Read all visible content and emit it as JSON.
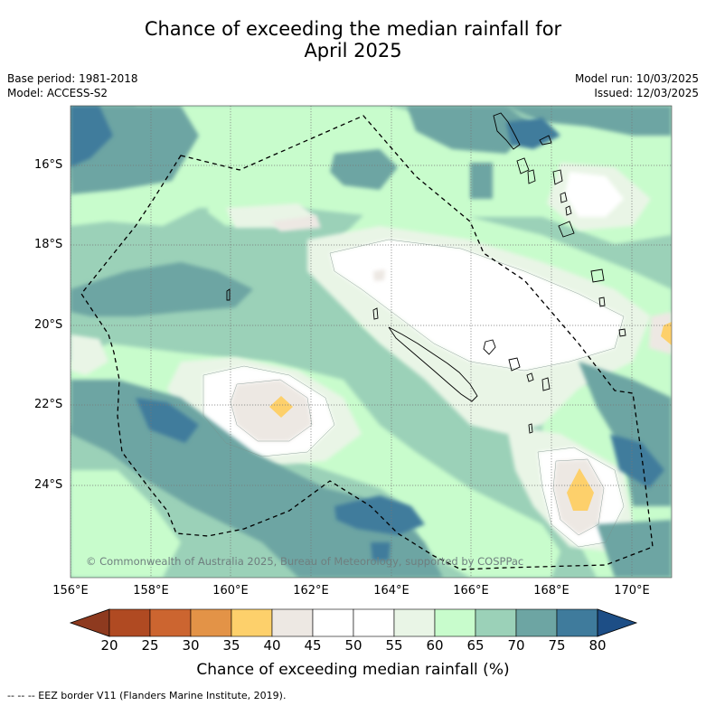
{
  "title_line1": "Chance of exceeding the median rainfall for",
  "title_line2": "April 2025",
  "meta": {
    "base_period": "Base period: 1981-2018",
    "model": "Model: ACCESS-S2",
    "model_run": "Model run: 10/03/2025",
    "issued": "Issued: 12/03/2025"
  },
  "latitude_labels": [
    "16°S",
    "18°S",
    "20°S",
    "22°S",
    "24°S"
  ],
  "longitude_labels": [
    "156°E",
    "158°E",
    "160°E",
    "162°E",
    "164°E",
    "166°E",
    "168°E",
    "170°E"
  ],
  "credit": "© Commonwealth of Australia 2025, Bureau of Meteorology, supported by COSPPac",
  "colorbar": {
    "ticks": [
      "20",
      "25",
      "30",
      "35",
      "40",
      "45",
      "50",
      "55",
      "60",
      "65",
      "70",
      "75",
      "80"
    ],
    "colors": [
      "#8e3a1f",
      "#b04a22",
      "#cc6530",
      "#e39347",
      "#fdd06b",
      "#ede8e3",
      "#ffffff",
      "#ffffff",
      "#e9f5e6",
      "#c8fccc",
      "#9bd1b8",
      "#6da5a3",
      "#3f7b9c",
      "#1d4e86"
    ],
    "label": "Chance of exceeding median rainfall (%)"
  },
  "footnote": "--  --  -- EEZ border V11 (Flanders Marine Institute, 2019)."
}
